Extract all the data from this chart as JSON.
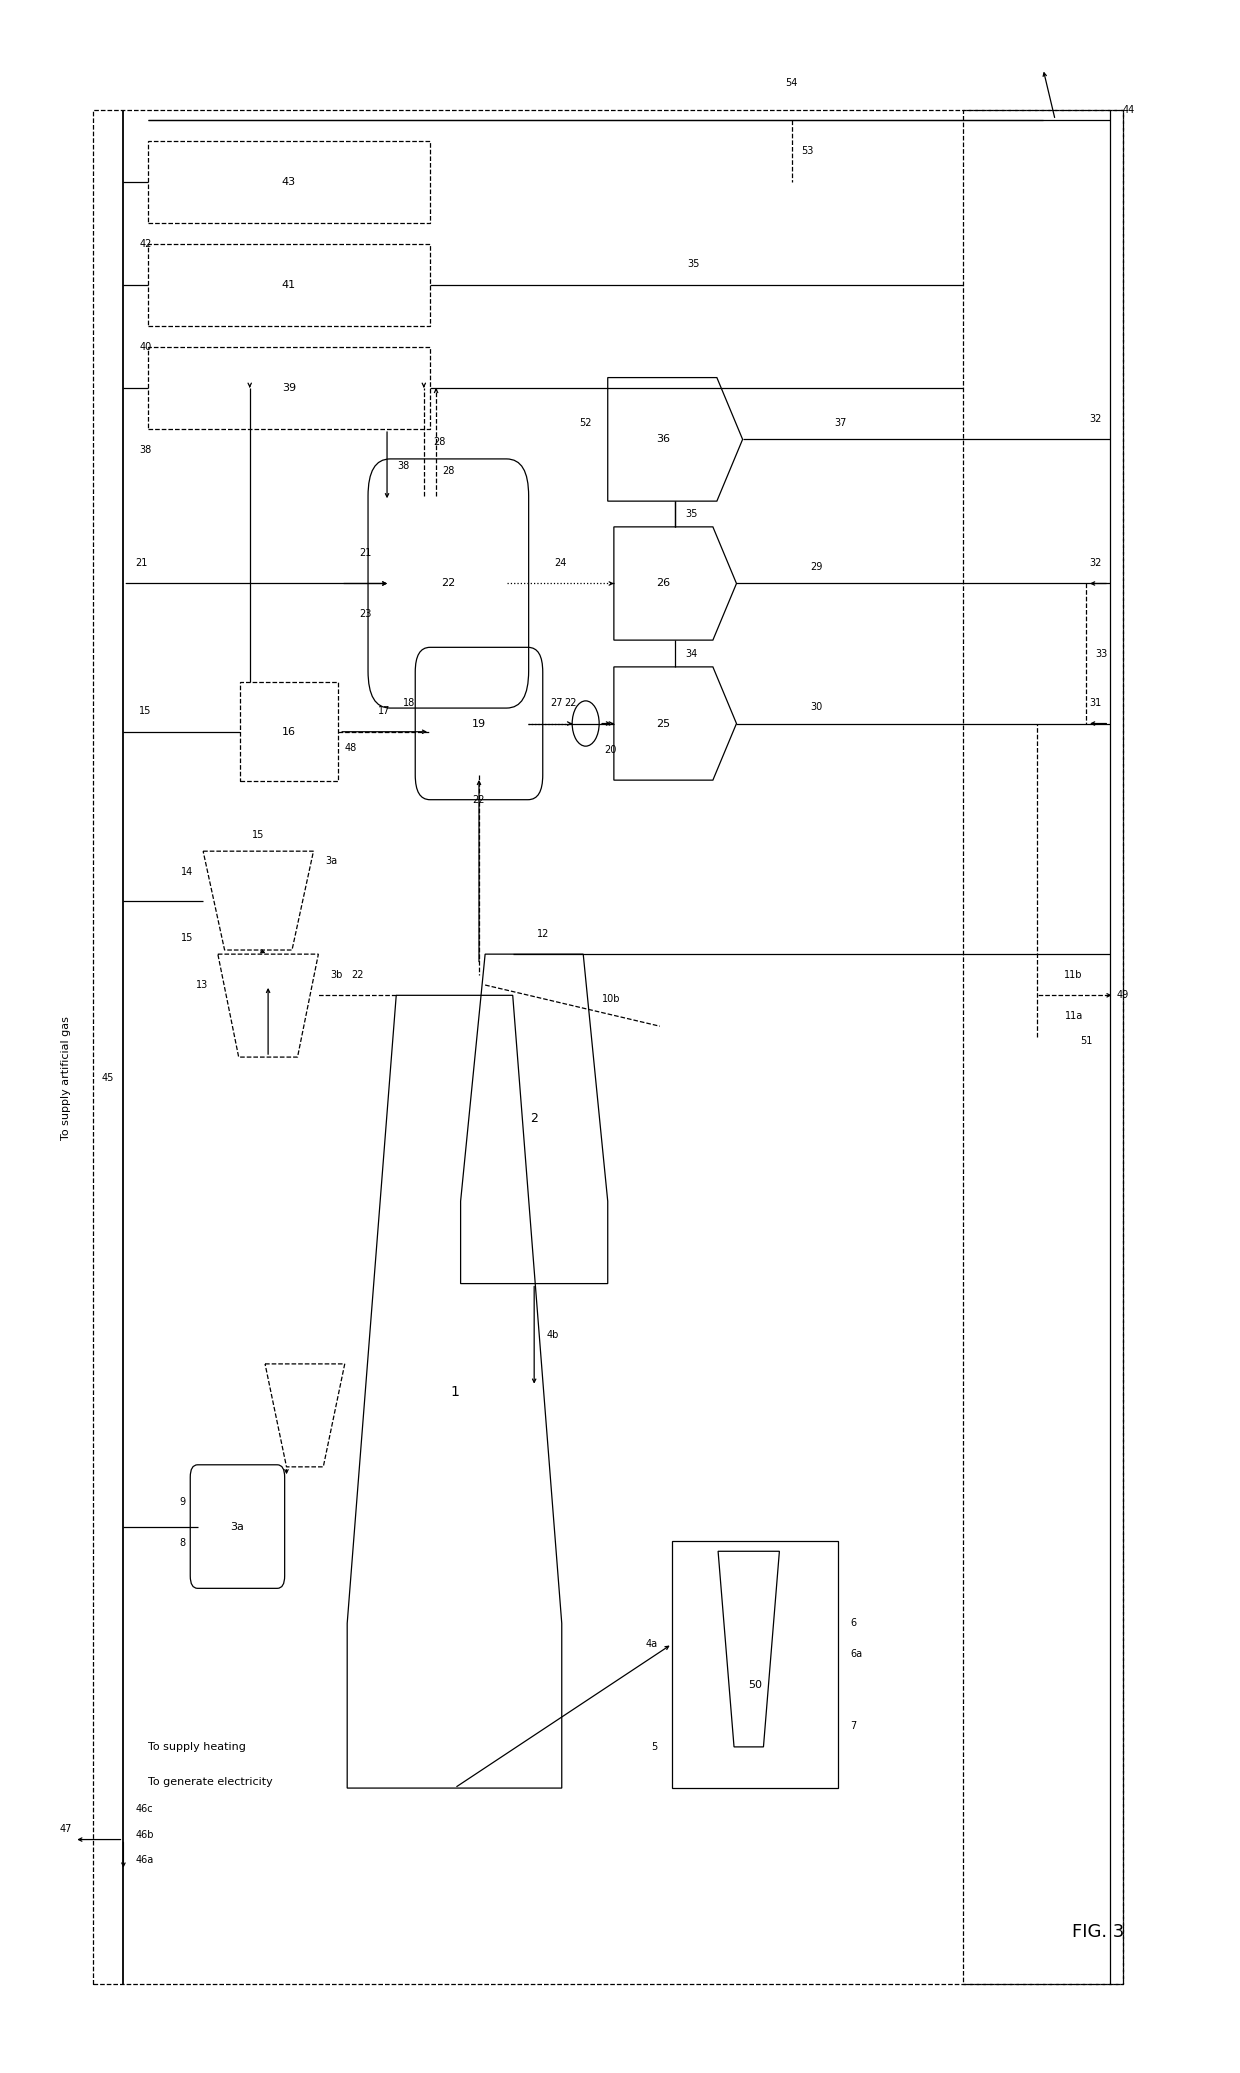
{
  "figsize": [
    12.4,
    20.73
  ],
  "dpi": 100,
  "bg": "#ffffff",
  "fg": "#000000",
  "fig_label": "FIG. 3",
  "side_text_left": "To supply artificial gas",
  "side_text_bottom1": "To supply heating",
  "side_text_bottom2": "To generate electricity"
}
